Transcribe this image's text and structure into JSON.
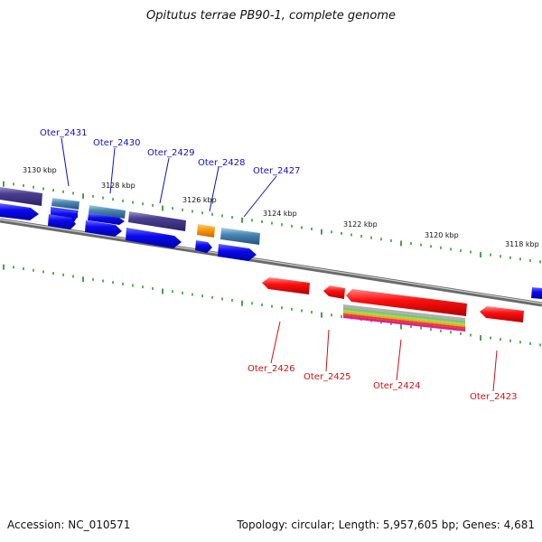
{
  "title": "Opitutus terrae PB90-1, complete genome",
  "footer": {
    "accession": "Accession: NC_010571",
    "stats": "Topology: circular; Length: 5,957,605 bp; Genes: 4,681"
  },
  "colors": {
    "forward_label": "#1010c0",
    "reverse_label": "#d01010",
    "forward_gene": "#0a0af0",
    "reverse_gene": "#ff1010",
    "tick": "#1a8a1a",
    "backbone": "#8a8a8a"
  },
  "kbp_labels": [
    "3130 kbp",
    "3128 kbp",
    "3126 kbp",
    "3124 kbp",
    "3122 kbp",
    "3120 kbp",
    "3118 kbp"
  ],
  "forward_genes": [
    {
      "name": "Oter_2431"
    },
    {
      "name": "Oter_2430"
    },
    {
      "name": "Oter_2429"
    },
    {
      "name": "Oter_2428"
    },
    {
      "name": "Oter_2427"
    }
  ],
  "reverse_genes": [
    {
      "name": "Oter_2426"
    },
    {
      "name": "Oter_2425"
    },
    {
      "name": "Oter_2424"
    },
    {
      "name": "Oter_2423"
    }
  ]
}
